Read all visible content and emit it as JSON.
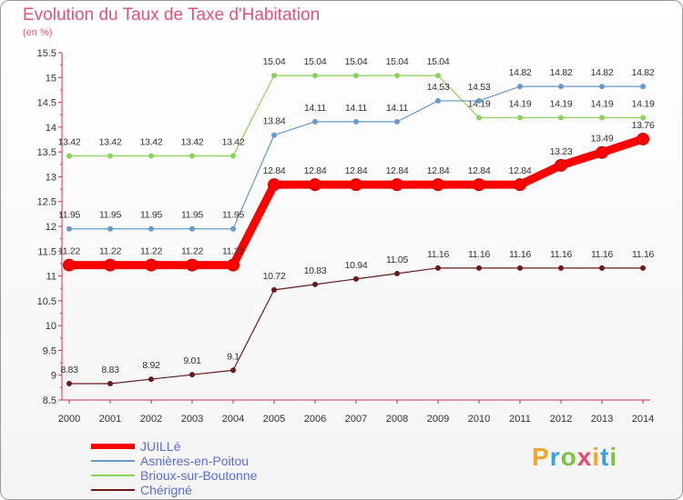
{
  "title": "Evolution du Taux de Taxe d'Habitation",
  "subtitle": "(en %)",
  "logo_text": [
    "P",
    "r",
    "o",
    "x",
    "i",
    "t",
    "i"
  ],
  "logo_colors": [
    "#f5a623",
    "#3aa0d8",
    "#7cc242",
    "#e24a6f",
    "#f5a623",
    "#3aa0d8",
    "#7cc242"
  ],
  "chart_data": {
    "type": "line",
    "title": "Evolution du Taux de Taxe d'Habitation",
    "ylabel": "(en %)",
    "xlabel": "",
    "ylim": [
      8.5,
      15.5
    ],
    "yticks": [
      "8.5",
      "9",
      "9.5",
      "10",
      "10.5",
      "11",
      "11.5",
      "12",
      "12.5",
      "13",
      "13.5",
      "14",
      "14.5",
      "15",
      "15.5"
    ],
    "grid": false,
    "legend": "bottom-left",
    "x": [
      "2000",
      "2001",
      "2002",
      "2003",
      "2004",
      "2005",
      "2006",
      "2007",
      "2008",
      "2009",
      "2010",
      "2011",
      "2012",
      "2013",
      "2014"
    ],
    "series": [
      {
        "name": "Brioux-sur-Boutonne",
        "color": "#88d45a",
        "values": [
          13.42,
          13.42,
          13.42,
          13.42,
          13.42,
          15.04,
          15.04,
          15.04,
          15.04,
          15.04,
          14.19,
          14.19,
          14.19,
          14.19,
          14.19
        ],
        "labels": [
          "13.42",
          "13.42",
          "13.42",
          "13.42",
          "13.42",
          "15.04",
          "15.04",
          "15.04",
          "15.04",
          "15.04",
          "14.19",
          "14.19",
          "14.19",
          "14.19",
          "14.19"
        ]
      },
      {
        "name": "Asnières-en-Poitou",
        "color": "#6699cc",
        "values": [
          11.95,
          11.95,
          11.95,
          11.95,
          11.95,
          13.84,
          14.11,
          14.11,
          14.11,
          14.53,
          14.53,
          14.82,
          14.82,
          14.82,
          14.82
        ],
        "labels": [
          "11.95",
          "11.95",
          "11.95",
          "11.95",
          "11.95",
          "13.84",
          "14.11",
          "14.11",
          "14.11",
          "14.53",
          "14.53",
          "14.82",
          "14.82",
          "14.82",
          "14.82"
        ]
      },
      {
        "name": "JUILLé",
        "color": "#ff0000",
        "values": [
          11.22,
          11.22,
          11.22,
          11.22,
          11.22,
          12.84,
          12.84,
          12.84,
          12.84,
          12.84,
          12.84,
          12.84,
          13.23,
          13.49,
          13.76
        ],
        "labels": [
          "11.22",
          "11.22",
          "11.22",
          "11.22",
          "11.22",
          "12.84",
          "12.84",
          "12.84",
          "12.84",
          "12.84",
          "12.84",
          "12.84",
          "13.23",
          "13.49",
          "13.76"
        ]
      },
      {
        "name": "Chérigné",
        "color": "#6b1a1a",
        "values": [
          8.83,
          8.83,
          8.92,
          9.01,
          9.1,
          10.72,
          10.83,
          10.94,
          11.05,
          11.16,
          11.16,
          11.16,
          11.16,
          11.16,
          11.16
        ],
        "labels": [
          "8.83",
          "8.83",
          "8.92",
          "9.01",
          "9.1",
          "10.72",
          "10.83",
          "10.94",
          "11.05",
          "11.16",
          "11.16",
          "11.16",
          "11.16",
          "11.16",
          "11.16"
        ]
      }
    ],
    "legend_order": [
      "JUILLé",
      "Asnières-en-Poitou",
      "Brioux-sur-Boutonne",
      "Chérigné"
    ]
  }
}
